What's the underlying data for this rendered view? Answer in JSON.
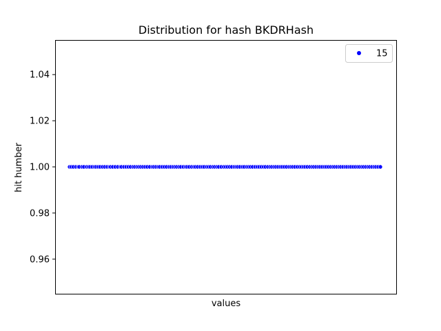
{
  "chart_data": {
    "type": "scatter",
    "title": "Distribution for hash BKDRHash",
    "xlabel": "values",
    "ylabel": "hit humber",
    "ylim": [
      0.945,
      1.055
    ],
    "yticks": [
      "0.96",
      "0.98",
      "1.00",
      "1.02",
      "1.04"
    ],
    "ytick_values": [
      0.96,
      0.98,
      1.0,
      1.02,
      1.04
    ],
    "xticks_visible": false,
    "grid": false,
    "legend": {
      "position": "upper-right",
      "entries": [
        "15"
      ]
    },
    "series": [
      {
        "name": "15",
        "color": "#0000ff",
        "marker": "circle",
        "y_constant": 1.0,
        "x": [
          0.0,
          0.0055,
          0.012,
          0.02,
          0.027,
          0.031,
          0.04,
          0.046,
          0.055,
          0.061,
          0.066,
          0.073,
          0.08,
          0.085,
          0.092,
          0.098,
          0.106,
          0.113,
          0.121,
          0.128,
          0.132,
          0.139,
          0.147,
          0.155,
          0.163,
          0.167,
          0.175,
          0.182,
          0.189,
          0.196,
          0.204,
          0.21,
          0.217,
          0.223,
          0.229,
          0.236,
          0.243,
          0.25,
          0.258,
          0.266,
          0.271,
          0.278,
          0.285,
          0.29,
          0.298,
          0.305,
          0.312,
          0.32,
          0.326,
          0.333,
          0.339,
          0.345,
          0.352,
          0.358,
          0.366,
          0.373,
          0.378,
          0.385,
          0.393,
          0.4,
          0.405,
          0.412,
          0.42,
          0.427,
          0.433,
          0.441,
          0.447,
          0.453,
          0.461,
          0.467,
          0.474,
          0.48,
          0.488,
          0.496,
          0.502,
          0.508,
          0.515,
          0.522,
          0.53,
          0.536,
          0.541,
          0.548,
          0.556,
          0.562,
          0.57,
          0.576,
          0.582,
          0.589,
          0.597,
          0.604,
          0.61,
          0.617,
          0.624,
          0.63,
          0.638,
          0.645,
          0.651,
          0.658,
          0.664,
          0.671,
          0.678,
          0.684,
          0.691,
          0.698,
          0.706,
          0.712,
          0.718,
          0.725,
          0.733,
          0.74,
          0.746,
          0.752,
          0.758,
          0.765,
          0.773,
          0.78,
          0.786,
          0.793,
          0.8,
          0.806,
          0.813,
          0.82,
          0.826,
          0.833,
          0.84,
          0.847,
          0.853,
          0.86,
          0.867,
          0.873,
          0.88,
          0.887,
          0.893,
          0.9,
          0.906,
          0.913,
          0.92,
          0.927,
          0.933,
          0.94,
          0.946,
          0.953,
          0.96,
          0.966,
          0.973,
          0.98,
          0.986,
          0.993,
          1.0
        ]
      }
    ]
  }
}
